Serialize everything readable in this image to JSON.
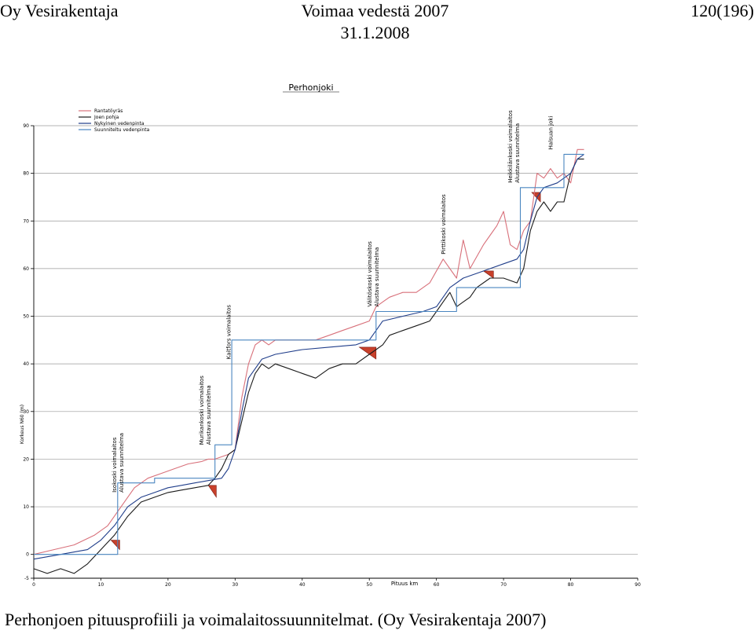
{
  "header": {
    "left": "Oy Vesirakentaja",
    "center_line1": "Voimaa vedestä 2007",
    "center_line2": "31.1.2008",
    "right": "120(196)"
  },
  "caption": "Perhonjoen pituusprofiili ja voimalaitossuunnitelmat. (Oy Vesirakentaja 2007)",
  "colors": {
    "rantatoyras": "#d8707a",
    "joen_pohja": "#1a1a1a",
    "nykyinen": "#1f3d8a",
    "suunniteltu": "#4a86c0",
    "fill": "#c8402a",
    "grid": "#9a9a9a"
  },
  "chart_data": {
    "type": "line",
    "title": "Perhonjoki",
    "xlabel": "Pituus km",
    "ylabel": "Korkeus N60 (m)",
    "xlim": [
      0,
      90
    ],
    "ylim": [
      -5,
      90
    ],
    "x_ticks": [
      "0",
      "10",
      "20",
      "30",
      "40",
      "50",
      "60",
      "70",
      "80",
      "90"
    ],
    "y_ticks": [
      "-5",
      "0",
      "10",
      "20",
      "30",
      "40",
      "50",
      "60",
      "70",
      "80",
      "90"
    ],
    "grid": true,
    "legend_position": "top-left",
    "series": [
      {
        "name": "Rantatöyräs",
        "color_key": "rantatoyras",
        "x": [
          0,
          3,
          6,
          9,
          11,
          13,
          15,
          17,
          19,
          21,
          23,
          25,
          26,
          27,
          28,
          29,
          30,
          31,
          32,
          33,
          34,
          35,
          36,
          38,
          40,
          42,
          44,
          46,
          48,
          50,
          51,
          52,
          53,
          55,
          57,
          59,
          61,
          63,
          64,
          65,
          67,
          68,
          69,
          70,
          71,
          72,
          73,
          74,
          75,
          76,
          77,
          78,
          79,
          80,
          81,
          82
        ],
        "y": [
          0,
          1,
          2,
          4,
          6,
          10,
          14,
          16,
          17,
          18,
          19,
          19.5,
          20,
          20,
          20.5,
          21,
          22,
          33,
          40,
          44,
          45,
          44,
          45,
          45,
          45,
          45,
          46,
          47,
          48,
          49,
          52,
          53,
          54,
          55,
          55,
          57,
          62,
          58,
          66,
          60,
          65,
          67,
          69,
          72,
          65,
          64,
          68,
          70,
          80,
          79,
          81,
          79,
          80,
          78,
          85,
          85
        ]
      },
      {
        "name": "Joen pohja",
        "color_key": "joen_pohja",
        "x": [
          0,
          2,
          4,
          6,
          8,
          10,
          12,
          14,
          16,
          18,
          20,
          22,
          24,
          26,
          27,
          28,
          29,
          30,
          31,
          32,
          33,
          34,
          35,
          36,
          38,
          40,
          42,
          44,
          46,
          48,
          50,
          51,
          52,
          53,
          55,
          57,
          59,
          60,
          61,
          62,
          63,
          64,
          65,
          66,
          68,
          70,
          72,
          73,
          74,
          75,
          76,
          77,
          78,
          79,
          80,
          81,
          82
        ],
        "y": [
          -3,
          -4,
          -3,
          -4,
          -2,
          1,
          4,
          8,
          11,
          12,
          13,
          13.5,
          14,
          14.5,
          16,
          18,
          21,
          22,
          28,
          34,
          38,
          40,
          39,
          40,
          39,
          38,
          37,
          39,
          40,
          40,
          42,
          43,
          44,
          46,
          47,
          48,
          49,
          51,
          53,
          55,
          52,
          53,
          54,
          56,
          58,
          58,
          57,
          60,
          68,
          72,
          74,
          72,
          74,
          74,
          80,
          83,
          83
        ]
      },
      {
        "name": "Nykyinen vedenpinta",
        "color_key": "nykyinen",
        "x": [
          0,
          4,
          8,
          10,
          12,
          14,
          16,
          18,
          20,
          22,
          24,
          26,
          28,
          29,
          30,
          31,
          32,
          34,
          36,
          40,
          44,
          48,
          50,
          51,
          52,
          55,
          58,
          60,
          61,
          62,
          64,
          66,
          68,
          70,
          72,
          73,
          74,
          75,
          76,
          78,
          80,
          81,
          82
        ],
        "y": [
          -1,
          0,
          1,
          3,
          6,
          10,
          12,
          13,
          14,
          14.5,
          15,
          15.5,
          16,
          18,
          22,
          30,
          37,
          41,
          42,
          43,
          43.5,
          44,
          45,
          47,
          49,
          50,
          51,
          52,
          54,
          56,
          58,
          59,
          60,
          61,
          62,
          64,
          70,
          75,
          77,
          78,
          80,
          83,
          84
        ]
      },
      {
        "name": "Suunniteltu vedenpinta",
        "color_key": "suunniteltu",
        "x": [
          0,
          12.5,
          12.5,
          18,
          18,
          27,
          27,
          29.5,
          29.5,
          51,
          51,
          63,
          63,
          72.5,
          72.5,
          79,
          79,
          82
        ],
        "y": [
          0,
          0,
          15,
          15,
          16,
          16,
          23,
          23,
          45,
          45,
          51,
          51,
          56,
          56,
          77,
          77,
          84,
          84
        ]
      }
    ],
    "annotations": [
      {
        "x": 13,
        "line1": "Isokoski voimalaitos",
        "line2": "Alustava suunnitelma"
      },
      {
        "x": 26,
        "line1": "Murikankoski voimalaitos",
        "line2": "Alustava suunnitelma"
      },
      {
        "x": 30,
        "line1": "Kaitfors voimalaitos",
        "line2": ""
      },
      {
        "x": 51,
        "line1": "Välitöskoski voimalaitos",
        "line2": "Alustava suunnitelma"
      },
      {
        "x": 62,
        "line1": "Pirttikoski voimalaitos",
        "line2": ""
      },
      {
        "x": 72,
        "line1": "Heikkilänkoski voimalaitos",
        "line2": "Alustava suunnitelma"
      },
      {
        "x": 78,
        "line1": "Halsuan joki",
        "line2": ""
      }
    ],
    "filled_regions": [
      {
        "x": [
          11.5,
          12.8,
          12.8
        ],
        "y": [
          3,
          3,
          1
        ]
      },
      {
        "x": [
          26,
          27.2,
          27.2
        ],
        "y": [
          14.5,
          14.5,
          12
        ]
      },
      {
        "x": [
          48.5,
          51,
          51
        ],
        "y": [
          43.5,
          43.5,
          41
        ]
      },
      {
        "x": [
          67,
          68.5,
          68.5
        ],
        "y": [
          59.5,
          59.5,
          58
        ]
      },
      {
        "x": [
          74.2,
          75.5,
          75.5
        ],
        "y": [
          76,
          76,
          74
        ]
      }
    ]
  }
}
